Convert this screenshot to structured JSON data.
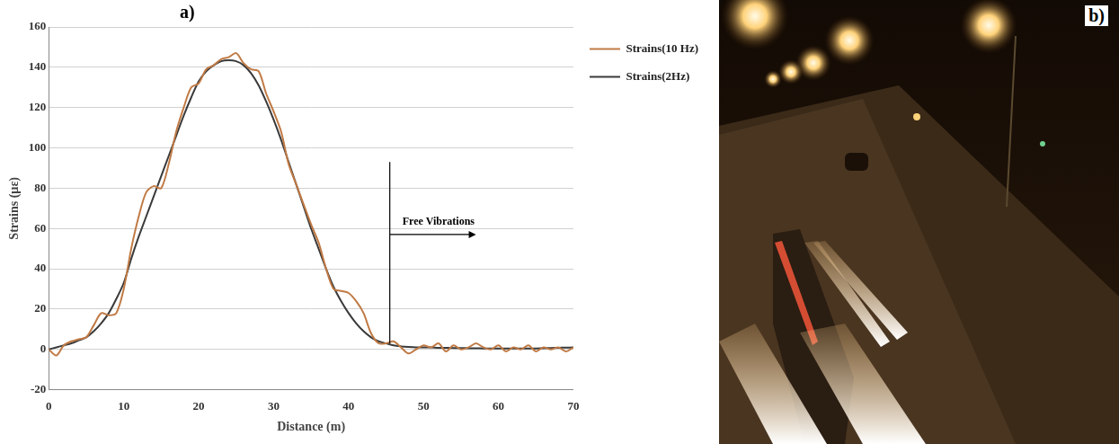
{
  "chart_data": {
    "type": "line",
    "x_label": "Distance (m)",
    "y_label": "Strains (µε)",
    "xlim": [
      0,
      70
    ],
    "xticks": [
      0,
      10,
      20,
      30,
      40,
      50,
      60,
      70
    ],
    "ylim": [
      -20,
      160
    ],
    "yticks": [
      -20,
      0,
      20,
      40,
      60,
      80,
      100,
      120,
      140,
      160
    ],
    "grid": true,
    "legend": "right",
    "series": [
      {
        "name": "Strains(10 Hz)",
        "color": "#c07a45",
        "x": [
          0,
          1,
          2,
          3,
          4,
          5,
          6,
          7,
          8,
          9,
          10,
          11,
          12,
          13,
          14,
          15,
          16,
          17,
          18,
          19,
          20,
          21,
          22,
          23,
          24,
          25,
          26,
          27,
          28,
          29,
          30,
          31,
          32,
          33,
          34,
          35,
          36,
          37,
          38,
          39,
          40,
          41,
          42,
          43,
          44,
          45,
          46,
          47,
          48,
          49,
          50,
          51,
          52,
          53,
          54,
          55,
          56,
          57,
          58,
          59,
          60,
          61,
          62,
          63,
          64,
          65,
          66,
          67,
          68,
          69,
          70
        ],
        "values": [
          0,
          -3,
          2,
          4,
          5,
          6,
          12,
          18,
          17,
          18,
          30,
          50,
          66,
          78,
          81,
          80,
          92,
          108,
          120,
          130,
          132,
          139,
          141,
          144,
          145,
          147,
          142,
          139,
          138,
          127,
          118,
          108,
          92,
          82,
          72,
          62,
          53,
          40,
          30,
          29,
          28,
          24,
          18,
          8,
          3,
          3,
          4,
          1,
          -2,
          0,
          2,
          1,
          3,
          -1,
          2,
          0,
          1,
          3,
          1,
          0,
          2,
          -1,
          1,
          0,
          2,
          -1,
          1,
          0,
          1,
          -1,
          1
        ]
      },
      {
        "name": "Strains(2Hz)",
        "color": "#3a3a3a",
        "x": [
          0,
          1,
          2,
          3,
          4,
          5,
          6,
          7,
          8,
          9,
          10,
          11,
          12,
          13,
          14,
          15,
          16,
          17,
          18,
          19,
          20,
          21,
          22,
          23,
          24,
          25,
          26,
          27,
          28,
          29,
          30,
          31,
          32,
          33,
          34,
          35,
          36,
          37,
          38,
          39,
          40,
          41,
          42,
          43,
          44,
          45,
          46,
          47,
          48,
          49,
          50,
          51,
          52,
          53,
          54,
          55,
          56,
          57,
          58,
          59,
          60,
          61,
          62,
          63,
          64,
          65,
          66,
          67,
          68,
          69,
          70
        ],
        "values": [
          0,
          1,
          2,
          3,
          4.5,
          6,
          9,
          13,
          18,
          25,
          33,
          45,
          56,
          66,
          76,
          86,
          96,
          106,
          116,
          125,
          133,
          138,
          141,
          143,
          143.5,
          143,
          141,
          137,
          131,
          123,
          114,
          104,
          93,
          82,
          71,
          60,
          50,
          40,
          31,
          24,
          18,
          13,
          9,
          6,
          4,
          3,
          2,
          1.5,
          1.2,
          1,
          1,
          1,
          0.8,
          0.8,
          0.7,
          0.7,
          0.6,
          0.6,
          0.5,
          0.5,
          0.5,
          0.5,
          0.5,
          0.5,
          0.5,
          0.5,
          0.6,
          0.7,
          0.8,
          0.9,
          1
        ]
      }
    ],
    "annotations": [
      {
        "text": "Free Vibrations",
        "x": 45.5,
        "y": [
          3,
          93
        ],
        "arrow_x": 57,
        "arrow_y": 57
      }
    ]
  },
  "panel_labels": [
    "a)",
    "b)"
  ]
}
